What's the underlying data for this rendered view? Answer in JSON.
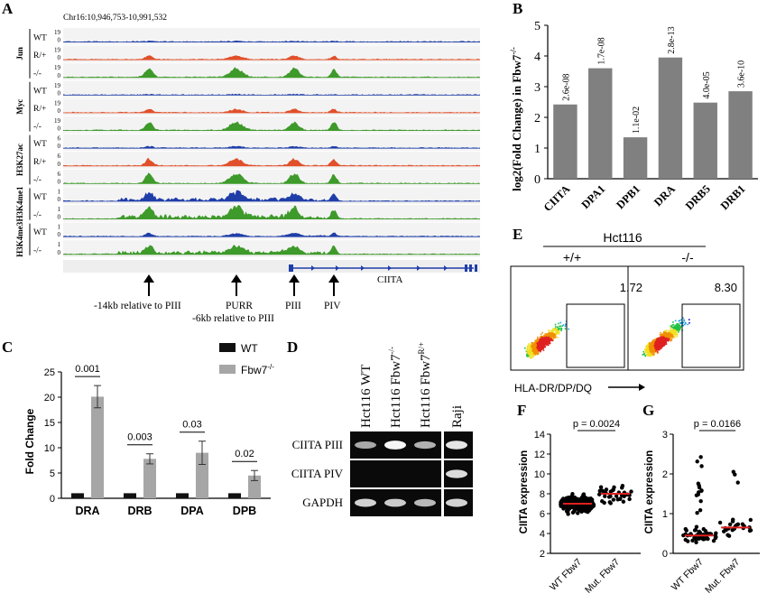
{
  "panel_labels": {
    "a": "A",
    "b": "B",
    "c": "C",
    "d": "D",
    "e": "E",
    "f": "F",
    "g": "G"
  },
  "panel_a": {
    "locus": "Chr16:10,946,753-10,991,532",
    "groups": [
      {
        "name": "Jun",
        "tracks": [
          {
            "label": "WT",
            "ymax": "19",
            "ymin": "0",
            "color": "#1f3ea8",
            "level": 0.05
          },
          {
            "label": "R/+",
            "ymax": "19",
            "ymin": "0",
            "color": "#e0502a",
            "level": 0.35
          },
          {
            "label": "-/-",
            "ymax": "19",
            "ymin": "0",
            "color": "#3e9a2a",
            "level": 0.8
          }
        ]
      },
      {
        "name": "Myc",
        "tracks": [
          {
            "label": "WT",
            "ymax": "19",
            "ymin": "0",
            "color": "#1f3ea8",
            "level": 0.05
          },
          {
            "label": "R/+",
            "ymax": "19",
            "ymin": "0",
            "color": "#e0502a",
            "level": 0.3
          },
          {
            "label": "-/-",
            "ymax": "19",
            "ymin": "0",
            "color": "#3e9a2a",
            "level": 0.75
          }
        ]
      },
      {
        "name": "H3K27ac",
        "tracks": [
          {
            "label": "WT",
            "ymax": "6",
            "ymin": "0",
            "color": "#1f3ea8",
            "level": 0.15
          },
          {
            "label": "R/+",
            "ymax": "6",
            "ymin": "0",
            "color": "#e0502a",
            "level": 0.6
          },
          {
            "label": "-/-",
            "ymax": "6",
            "ymin": "0",
            "color": "#3e9a2a",
            "level": 0.9
          }
        ]
      },
      {
        "name": "H3K4me1",
        "tracks": [
          {
            "label": "WT",
            "ymax": "1",
            "ymin": "0",
            "color": "#1f3ea8",
            "level": 0.7
          },
          {
            "label": "-/-",
            "ymax": "1",
            "ymin": "0",
            "color": "#3e9a2a",
            "level": 0.9
          }
        ]
      },
      {
        "name": "H3K4me3",
        "tracks": [
          {
            "label": "WT",
            "ymax": "1",
            "ymin": "0",
            "color": "#1f3ea8",
            "level": 0.3
          },
          {
            "label": "-/-",
            "ymax": "1",
            "ymin": "0",
            "color": "#3e9a2a",
            "level": 0.7
          }
        ]
      }
    ],
    "gene": "CIITA",
    "annotations": [
      "-14kb relative to PIII",
      "PURR",
      "-6kb relative to PIII",
      "PIII",
      "PIV"
    ]
  },
  "panel_b": {
    "chart_data": {
      "type": "bar",
      "categories": [
        "CIITA",
        "DPA1",
        "DPB1",
        "DRA",
        "DRB5",
        "DRB1"
      ],
      "values": [
        2.42,
        3.6,
        1.35,
        3.95,
        2.48,
        2.85
      ],
      "labels": [
        "2.6e-08",
        "1.7e-08",
        "1.1e-02",
        "2.8e-13",
        "4.0e-05",
        "3.6e-10"
      ],
      "ylabel": "log2(Fold Change) in Fbw7",
      "ylabel_sup": "-/-",
      "ylim": [
        0,
        5
      ],
      "yticks": [
        "0",
        "1",
        "2",
        "3",
        "4",
        "5"
      ],
      "bar_color": "#808080"
    }
  },
  "panel_c": {
    "chart_data": {
      "type": "bar",
      "categories": [
        "DRA",
        "DRB",
        "DPA",
        "DPB"
      ],
      "series": [
        {
          "name": "WT",
          "values": [
            1,
            1,
            1,
            1
          ],
          "errors": [
            0,
            0,
            0,
            0
          ],
          "color": "#111111"
        },
        {
          "name": "Fbw7",
          "name_sup": "-/-",
          "values": [
            20.1,
            7.8,
            9.0,
            4.5
          ],
          "errors": [
            2.2,
            1.0,
            2.3,
            1.0
          ],
          "color": "#a6a6a6"
        }
      ],
      "pvalues": [
        "0.001",
        "0.003",
        "0.03",
        "0.02"
      ],
      "ylabel": "Fold Change",
      "ylim": [
        0,
        25
      ],
      "yticks": [
        "0",
        "5",
        "10",
        "15",
        "20",
        "25"
      ]
    }
  },
  "panel_d": {
    "columns": [
      {
        "main": "Hct116 WT",
        "sup": ""
      },
      {
        "main": "Hct116 Fbw7",
        "sup": "-/-"
      },
      {
        "main": "Hct116 Fbw7",
        "sup": "R/+"
      },
      {
        "main": "Raji",
        "sup": ""
      }
    ],
    "rows": [
      {
        "label": "CIITA PIII",
        "bands": [
          0.5,
          0.95,
          0.55,
          0.85
        ]
      },
      {
        "label": "CIITA PIV",
        "bands": [
          0,
          0,
          0,
          0.8
        ]
      },
      {
        "label": "GAPDH",
        "bands": [
          0.75,
          0.7,
          0.6,
          0.75
        ]
      }
    ]
  },
  "panel_e": {
    "title": "Hct116",
    "left_label": "+/+",
    "right_label": "-/-",
    "left_value": "1.72",
    "right_value": "8.30",
    "xlabel": "HLA-DR/DP/DQ"
  },
  "panel_f": {
    "chart_data": {
      "type": "scatter",
      "categories": [
        "WT Fbw7",
        "Mut. Fbw7"
      ],
      "medians": [
        7.0,
        8.0
      ],
      "ylabel": "CIITA expression",
      "ylim": [
        2,
        14
      ],
      "yticks": [
        "2",
        "4",
        "6",
        "8",
        "10",
        "12",
        "14"
      ],
      "pvalue": "p = 0.0024"
    }
  },
  "panel_g": {
    "chart_data": {
      "type": "scatter",
      "categories": [
        "WT Fbw7",
        "Mut. Fbw7"
      ],
      "medians": [
        0.45,
        0.65
      ],
      "ylabel": "CIITA expression",
      "ylim": [
        0,
        3
      ],
      "yticks": [
        "0",
        "1",
        "2",
        "3"
      ],
      "pvalue": "p = 0.0166"
    }
  }
}
